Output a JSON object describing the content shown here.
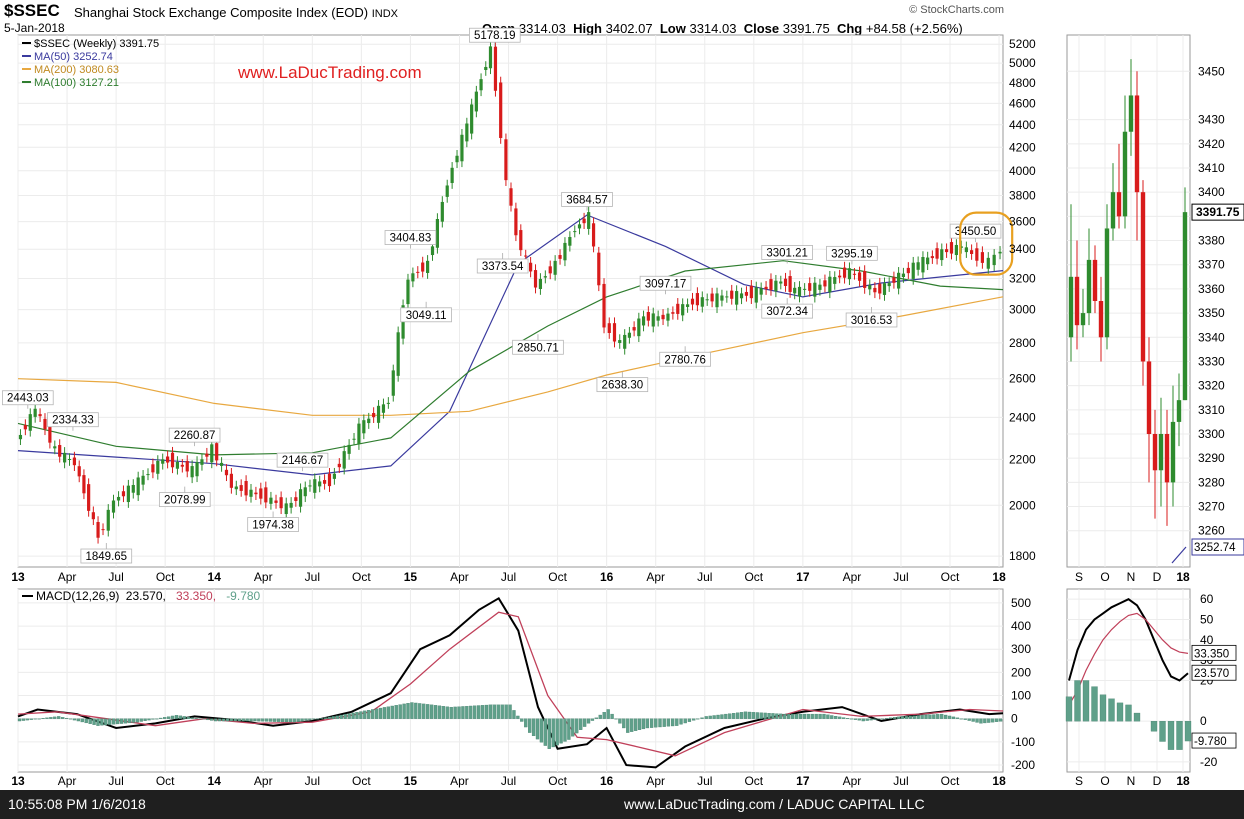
{
  "header": {
    "symbol": "$SSEC",
    "name": "Shanghai Stock Exchange Composite Index (EOD)",
    "exchange": "INDX",
    "date": "5-Jan-2018",
    "brand": "© StockCharts.com",
    "ohlc": {
      "open_label": "Open",
      "open": "3314.03",
      "high_label": "High",
      "high": "3402.07",
      "low_label": "Low",
      "low": "3314.03",
      "close_label": "Close",
      "close": "3391.75",
      "chg_label": "Chg",
      "chg": "+84.58 (+2.56%)"
    }
  },
  "watermark": "www.LaDucTrading.com",
  "footer": {
    "timestamp": "10:55:08 PM 1/6/2018",
    "credit": "www.LaDucTrading.com / LADUC CAPITAL LLC"
  },
  "colors": {
    "up": "#2e8b2e",
    "down": "#d81b1b",
    "ma50": "#3a3a9e",
    "ma200": "#e8a840",
    "ma100": "#2f7d2f",
    "macd": "#000000",
    "signal": "#c0405a",
    "histogram": "#5fa08a",
    "watermark": "#e02020",
    "highlight": "#e8a020"
  },
  "chart_data": [
    {
      "type": "line",
      "panel": "weekly price",
      "legend": [
        {
          "label": "$SSEC (Weekly) 3391.75",
          "color": "#000000"
        },
        {
          "label": "MA(50) 3252.74",
          "color": "#3a3a9e"
        },
        {
          "label": "MA(200) 3080.63",
          "color": "#e8a840"
        },
        {
          "label": "MA(100) 3127.21",
          "color": "#2f7d2f"
        }
      ],
      "y_scale": "log",
      "ylim": [
        1760,
        5300
      ],
      "y_ticks": [
        1800,
        2000,
        2200,
        2400,
        2600,
        2800,
        3000,
        3200,
        3400,
        3600,
        3800,
        4000,
        4200,
        4400,
        4600,
        4800,
        5000,
        5200
      ],
      "x_ticks": [
        "13",
        "Apr",
        "Jul",
        "Oct",
        "14",
        "Apr",
        "Jul",
        "Oct",
        "15",
        "Apr",
        "Jul",
        "Oct",
        "16",
        "Apr",
        "Jul",
        "Oct",
        "17",
        "Apr",
        "Jul",
        "Oct",
        "18"
      ],
      "x_range": [
        2013.0,
        2018.02
      ],
      "series": [
        {
          "name": "$SSEC (Weekly)",
          "x": [
            2013.0,
            2013.1,
            2013.2,
            2013.3,
            2013.42,
            2013.5,
            2013.6,
            2013.75,
            2013.9,
            2014.0,
            2014.1,
            2014.25,
            2014.38,
            2014.5,
            2014.6,
            2014.75,
            2014.9,
            2015.0,
            2015.1,
            2015.2,
            2015.3,
            2015.42,
            2015.5,
            2015.55,
            2015.65,
            2015.75,
            2015.85,
            2015.92,
            2016.0,
            2016.08,
            2016.2,
            2016.3,
            2016.45,
            2016.6,
            2016.75,
            2016.9,
            2016.97,
            2017.1,
            2017.25,
            2017.38,
            2017.5,
            2017.6,
            2017.72,
            2017.82,
            2017.9,
            2017.96,
            2018.02
          ],
          "values": [
            2280,
            2443,
            2240,
            2180,
            1870,
            2020,
            2080,
            2200,
            2150,
            2250,
            2080,
            2040,
            1990,
            2090,
            2100,
            2350,
            2480,
            3200,
            3300,
            3900,
            4400,
            5150,
            3900,
            3500,
            3150,
            3300,
            3550,
            3640,
            2900,
            2800,
            2950,
            2950,
            3050,
            3080,
            3100,
            3180,
            3120,
            3150,
            3250,
            3110,
            3210,
            3300,
            3380,
            3420,
            3340,
            3310,
            3391.75
          ]
        },
        {
          "name": "MA(50)",
          "x": [
            2013.0,
            2013.5,
            2014.0,
            2014.5,
            2014.9,
            2015.2,
            2015.55,
            2015.9,
            2016.3,
            2016.7,
            2017.0,
            2017.4,
            2017.7,
            2018.02
          ],
          "values": [
            2240,
            2210,
            2180,
            2130,
            2170,
            2430,
            3300,
            3650,
            3420,
            3160,
            3080,
            3170,
            3210,
            3252.74
          ]
        },
        {
          "name": "MA(200)",
          "x": [
            2013.0,
            2013.5,
            2014.0,
            2014.5,
            2014.9,
            2015.3,
            2015.7,
            2016.0,
            2016.5,
            2017.0,
            2017.5,
            2018.02
          ],
          "values": [
            2600,
            2580,
            2470,
            2410,
            2410,
            2430,
            2530,
            2620,
            2740,
            2860,
            2960,
            3080.63
          ]
        },
        {
          "name": "MA(100)",
          "x": [
            2013.0,
            2013.5,
            2014.0,
            2014.5,
            2014.9,
            2015.3,
            2015.7,
            2016.0,
            2016.4,
            2016.9,
            2017.3,
            2017.7,
            2018.02
          ],
          "values": [
            2370,
            2260,
            2220,
            2230,
            2300,
            2640,
            2900,
            3080,
            3250,
            3320,
            3250,
            3150,
            3127.21
          ]
        }
      ],
      "annotations": [
        {
          "label": "2443.03",
          "x": 2013.05,
          "value": 2443.03
        },
        {
          "label": "2334.33",
          "x": 2013.28,
          "value": 2334.33
        },
        {
          "label": "1849.65",
          "x": 2013.45,
          "value": 1849.65
        },
        {
          "label": "2260.87",
          "x": 2013.9,
          "value": 2260.87
        },
        {
          "label": "2078.99",
          "x": 2013.85,
          "value": 2078.99
        },
        {
          "label": "2146.67",
          "x": 2014.45,
          "value": 2146.67
        },
        {
          "label": "1974.38",
          "x": 2014.3,
          "value": 1974.38
        },
        {
          "label": "3404.83",
          "x": 2015.0,
          "value": 3404.83
        },
        {
          "label": "3049.11",
          "x": 2015.08,
          "value": 3049.11
        },
        {
          "label": "5178.19",
          "x": 2015.43,
          "value": 5178.19
        },
        {
          "label": "3373.54",
          "x": 2015.47,
          "value": 3373.54
        },
        {
          "label": "2850.71",
          "x": 2015.65,
          "value": 2850.71
        },
        {
          "label": "3684.57",
          "x": 2015.9,
          "value": 3684.57
        },
        {
          "label": "2638.30",
          "x": 2016.08,
          "value": 2638.3
        },
        {
          "label": "3097.17",
          "x": 2016.3,
          "value": 3097.17
        },
        {
          "label": "2780.76",
          "x": 2016.4,
          "value": 2780.76
        },
        {
          "label": "3301.21",
          "x": 2016.92,
          "value": 3301.21
        },
        {
          "label": "3072.34",
          "x": 2016.92,
          "value": 3072.34
        },
        {
          "label": "3295.19",
          "x": 2017.25,
          "value": 3295.19
        },
        {
          "label": "3016.53",
          "x": 2017.35,
          "value": 3016.53
        },
        {
          "label": "3450.50",
          "x": 2017.88,
          "value": 3450.5
        }
      ],
      "grid": true
    },
    {
      "type": "bar",
      "panel": "daily price zoom",
      "x_ticks": [
        "S",
        "O",
        "N",
        "D",
        "18"
      ],
      "ylim": [
        3245,
        3465
      ],
      "y_ticks": [
        3260,
        3270,
        3280,
        3290,
        3300,
        3310,
        3320,
        3330,
        3340,
        3350,
        3360,
        3370,
        3380,
        3390,
        3400,
        3410,
        3420,
        3430,
        3450
      ],
      "last_price_label": "3391.75",
      "ma50_label": "3252.74"
    },
    {
      "type": "line",
      "panel": "weekly MACD",
      "legend": [
        {
          "label": "MACD(12,26,9)",
          "color": "#000000"
        },
        {
          "label": "23.570,",
          "color": "#000000"
        },
        {
          "label": "33.350,",
          "color": "#c0405a"
        },
        {
          "label": "-9.780",
          "color": "#5fa08a"
        }
      ],
      "ylim": [
        -230,
        560
      ],
      "y_ticks": [
        -200,
        -100,
        0,
        100,
        200,
        300,
        400,
        500
      ],
      "x_range": [
        2013.0,
        2018.02
      ],
      "series": [
        {
          "name": "MACD",
          "x": [
            2013.0,
            2013.1,
            2013.3,
            2013.5,
            2013.7,
            2013.9,
            2014.1,
            2014.3,
            2014.5,
            2014.7,
            2014.9,
            2015.05,
            2015.2,
            2015.35,
            2015.45,
            2015.55,
            2015.65,
            2015.75,
            2015.9,
            2016.0,
            2016.1,
            2016.25,
            2016.4,
            2016.6,
            2016.8,
            2017.0,
            2017.2,
            2017.4,
            2017.6,
            2017.8,
            2017.95,
            2018.02
          ],
          "values": [
            10,
            40,
            20,
            -40,
            -20,
            10,
            -5,
            -30,
            -10,
            30,
            110,
            300,
            360,
            470,
            520,
            380,
            50,
            -130,
            -110,
            -40,
            -200,
            -210,
            -120,
            -40,
            0,
            30,
            50,
            -10,
            20,
            40,
            20,
            23.57
          ]
        },
        {
          "name": "Signal",
          "x": [
            2013.0,
            2013.2,
            2013.45,
            2013.7,
            2013.95,
            2014.2,
            2014.5,
            2014.8,
            2015.0,
            2015.2,
            2015.45,
            2015.55,
            2015.7,
            2015.85,
            2016.0,
            2016.15,
            2016.35,
            2016.6,
            2016.8,
            2017.0,
            2017.3,
            2017.6,
            2017.85,
            2018.02
          ],
          "values": [
            20,
            30,
            0,
            -30,
            0,
            -20,
            -15,
            30,
            150,
            300,
            460,
            440,
            100,
            -80,
            -90,
            -120,
            -160,
            -60,
            -10,
            40,
            10,
            20,
            40,
            33.35
          ]
        },
        {
          "name": "Histogram",
          "x": [
            2013.0,
            2013.2,
            2013.4,
            2013.6,
            2013.8,
            2014.0,
            2014.2,
            2014.4,
            2014.6,
            2014.8,
            2015.0,
            2015.2,
            2015.4,
            2015.5,
            2015.6,
            2015.7,
            2015.8,
            2015.9,
            2016.0,
            2016.1,
            2016.2,
            2016.35,
            2016.5,
            2016.7,
            2016.9,
            2017.1,
            2017.3,
            2017.5,
            2017.7,
            2017.9,
            2018.02
          ],
          "values": [
            -10,
            10,
            -30,
            -15,
            15,
            -10,
            -10,
            -15,
            10,
            40,
            70,
            50,
            60,
            60,
            -60,
            -130,
            -90,
            -20,
            40,
            -60,
            -40,
            -30,
            10,
            30,
            20,
            20,
            -10,
            10,
            20,
            -20,
            -9.78
          ]
        }
      ],
      "grid": true
    },
    {
      "type": "line",
      "panel": "daily MACD zoom",
      "x_ticks": [
        "S",
        "O",
        "N",
        "D",
        "18"
      ],
      "ylim": [
        -25,
        65
      ],
      "y_ticks": [
        -20,
        0,
        20,
        30,
        40,
        50,
        60
      ],
      "values_labels": [
        "33.350",
        "23.570",
        "-9.780"
      ]
    }
  ]
}
